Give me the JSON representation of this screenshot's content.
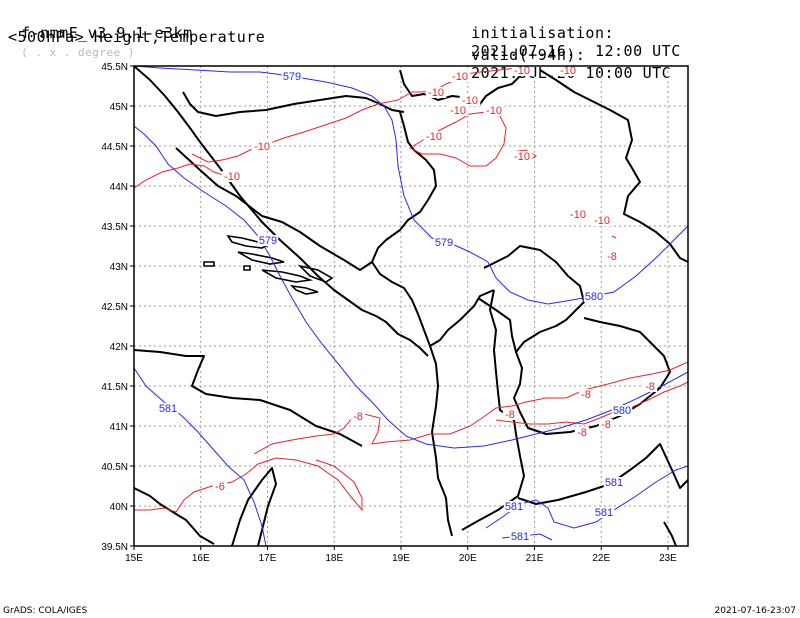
{
  "header": {
    "model": "f-nmmE_v3.9.1-e3km",
    "projection": "( . x . degree )",
    "fields": "<500hPa> Height,Temperature",
    "init_label": "initialisation:",
    "init_value": "2021.07.16.  12:00 UTC",
    "valid_label": "valid(+94h):",
    "valid_value": "2021.JUL.20 10:00 UTC"
  },
  "axes": {
    "lon_labels": [
      "15E",
      "16E",
      "17E",
      "18E",
      "19E",
      "20E",
      "21E",
      "22E",
      "23E"
    ],
    "lat_labels": [
      "45.5N",
      "45N",
      "44.5N",
      "44N",
      "43.5N",
      "43N",
      "42.5N",
      "42N",
      "41.5N",
      "41N",
      "40.5N",
      "40N",
      "39.5N"
    ],
    "lon_range": [
      15,
      23.3
    ],
    "lat_range": [
      39.5,
      45.5
    ]
  },
  "contour_labels": {
    "temperature": [
      "-10",
      "-10",
      "-10",
      "-10",
      "-10",
      "-10",
      "-10",
      "-10",
      "-10",
      "-10",
      "-10",
      "-10",
      "-10",
      "-8",
      "-8",
      "-8",
      "-8",
      "-8",
      "-8",
      "-8",
      "-6"
    ],
    "height": [
      "579",
      "579",
      "579",
      "580",
      "580",
      "581",
      "581",
      "581",
      "581",
      "581"
    ]
  },
  "colors": {
    "temperature": "#e0282e",
    "height": "#2a2ae8",
    "coast_border": "#000000",
    "grid": "#9a9a9a"
  },
  "footer": {
    "left": "GrADS: COLA/IGES",
    "right": "2021-07-16-23:07"
  }
}
